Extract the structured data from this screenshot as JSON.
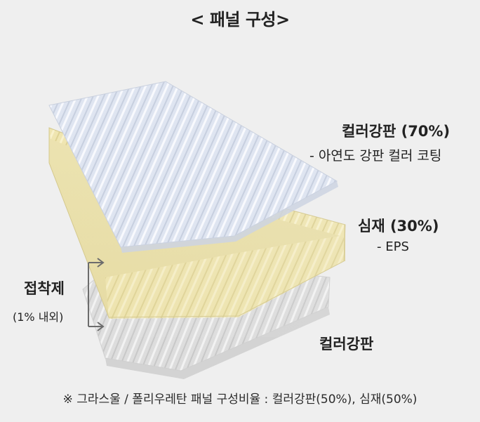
{
  "title": "< 패널 구성>",
  "layers": {
    "top": {
      "title": "컬러강판 (70%)",
      "desc": "- 아연도 강판 컬러 코팅"
    },
    "core": {
      "title": "심재 (30%)",
      "desc": "- EPS"
    },
    "bottom": {
      "title": "컬러강판"
    }
  },
  "adhesive": {
    "title": "접착제",
    "desc": "(1% 내외)"
  },
  "footnote": "※ 그라스울 / 폴리우레탄 패널 구성비율 : 컬러강판(50%), 심재(50%)",
  "colors": {
    "background": "#efefef",
    "top_sheet": "#dde3ef",
    "core": "#eee3aa",
    "bottom_sheet": "#dcdcdc",
    "arrow": "#6c6c6c"
  }
}
